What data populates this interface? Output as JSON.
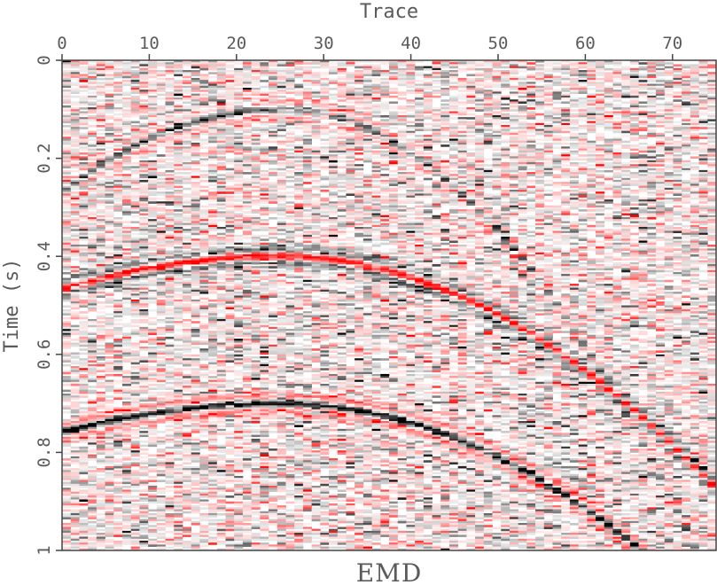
{
  "chart_data": {
    "type": "heatmap",
    "title": "",
    "bottom_label": "EMD",
    "xlabel": "Trace",
    "ylabel": "Time (s)",
    "x_axis_position": "top",
    "xlim": [
      0,
      75
    ],
    "ylim": [
      0,
      1
    ],
    "y_inverted": true,
    "xticks": [
      0,
      10,
      20,
      30,
      40,
      50,
      60,
      70
    ],
    "yticks": [
      0,
      0.2,
      0.4,
      0.6,
      0.8,
      1
    ],
    "ytick_labels": [
      "0",
      "0.2",
      "0.4",
      "0.6",
      "0.8",
      "1"
    ],
    "colormap": {
      "positive": "#000000",
      "negative": "#ff0000",
      "zero": "#ffffff"
    },
    "n_traces": 76,
    "n_samples": 250,
    "events": [
      {
        "apex_trace": 25,
        "apex_time": 0.1,
        "slope_left": 0.0027,
        "slope_right": 0.00395,
        "amplitude": 0.55
      },
      {
        "apex_trace": 25,
        "apex_time": 0.4,
        "slope_left": 0.00108,
        "slope_right": 0.0019,
        "amplitude": -1.0
      },
      {
        "apex_trace": 25,
        "apex_time": 0.7,
        "slope_left": 0.00095,
        "slope_right": 0.00175,
        "amplitude": 1.0
      }
    ],
    "noise_level": 0.35
  }
}
